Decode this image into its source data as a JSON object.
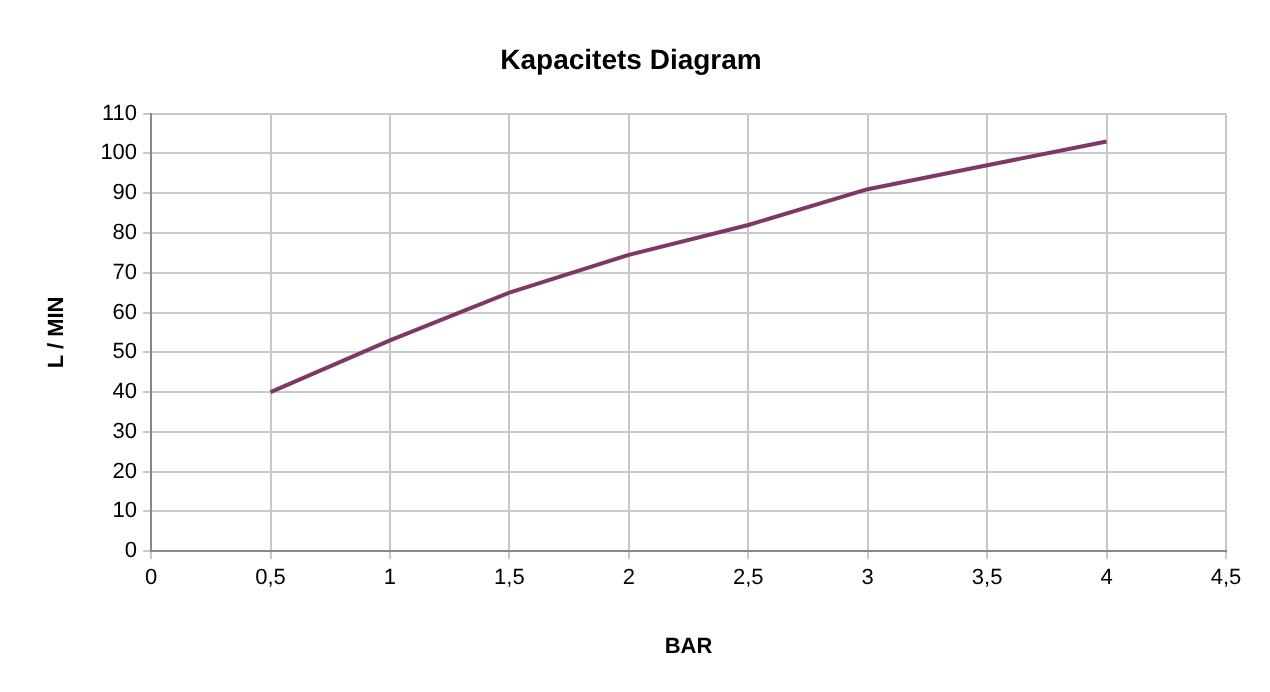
{
  "chart_data": {
    "type": "line",
    "title": "Kapacitets Diagram",
    "xlabel": "BAR",
    "ylabel": "L / MIN",
    "x": [
      0.5,
      1,
      1.5,
      2,
      2.5,
      3,
      3.5,
      4
    ],
    "series": [
      {
        "color": "#7f3766",
        "values": [
          40,
          53,
          65,
          74.5,
          82,
          91,
          97,
          103
        ]
      }
    ],
    "xlim": [
      0,
      4.5
    ],
    "xticks": [
      0,
      {
        "value": 0.5,
        "label": "0,5"
      },
      1,
      {
        "value": 1.5,
        "label": "1,5"
      },
      2,
      {
        "value": 2.5,
        "label": "2,5"
      },
      3,
      {
        "value": 3.5,
        "label": "3,5"
      },
      4,
      {
        "value": 4.5,
        "label": "4,5"
      }
    ],
    "ylim": [
      0,
      110
    ],
    "yticks": [
      0,
      10,
      20,
      30,
      40,
      50,
      60,
      70,
      80,
      90,
      100,
      110
    ],
    "grid": true,
    "legend": false,
    "marker": "none",
    "line_style": "solid"
  }
}
